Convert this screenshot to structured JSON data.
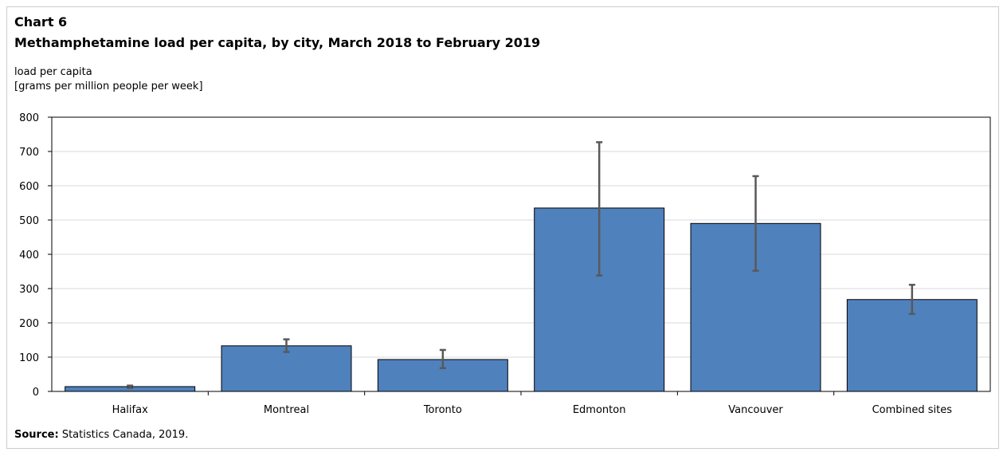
{
  "chart_number": "Chart 6",
  "title": "Methamphetamine load per capita, by city, March 2018 to February 2019",
  "ylabel_line1": "load per capita",
  "ylabel_line2": "[grams per million people per week]",
  "source_label": "Source:",
  "source_text": "Statistics Canada, 2019.",
  "colors": {
    "bar": "#4f81bd",
    "bar_stroke": "#000000",
    "error_bar": "#595959",
    "grid": "#d9d9d9"
  },
  "chart_data": {
    "type": "bar",
    "categories": [
      "Halifax",
      "Montreal",
      "Toronto",
      "Edmonton",
      "Vancouver",
      "Combined sites"
    ],
    "values": [
      14,
      133,
      93,
      535,
      490,
      268
    ],
    "error_low": [
      10,
      115,
      68,
      338,
      352,
      226
    ],
    "error_high": [
      17,
      152,
      121,
      727,
      628,
      311
    ],
    "ylim": [
      0,
      800
    ],
    "yticks": [
      0,
      100,
      200,
      300,
      400,
      500,
      600,
      700,
      800
    ],
    "grid": true,
    "legend": false
  }
}
